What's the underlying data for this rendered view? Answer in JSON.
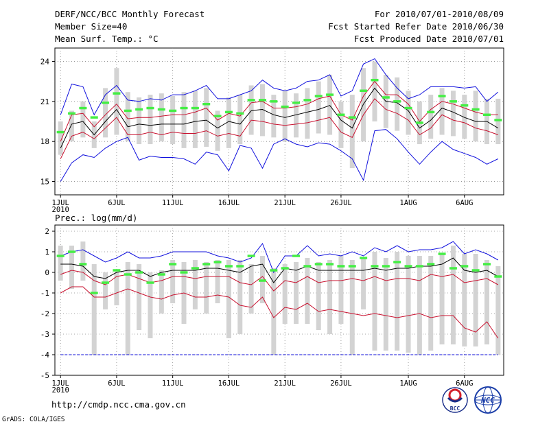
{
  "header": {
    "left": [
      "DERF/NCC/BCC Monthly Forecast",
      "Member Size=40",
      "Mean Surf. Temp.: °C"
    ],
    "right": [
      "For 2010/07/01-2010/08/09",
      "Fcst Started Refer Date 2010/06/30",
      "Fcst Produced Date 2010/07/01"
    ]
  },
  "footer": {
    "url": "http://cmdp.ncc.cma.gov.cn",
    "credit": "GrADS: COLA/IGES",
    "logo_bcc": "BCC",
    "logo_ncc": "NCC"
  },
  "colors": {
    "mean": "#000000",
    "bound": "#c8102e",
    "extreme": "#1010dd",
    "bar": "#d3d3d3",
    "obs": "#44ee44",
    "grid": "#888888"
  },
  "chart_data": [
    {
      "type": "line",
      "title": "Mean Surf. Temp.: °C",
      "xlabel": "",
      "ylabel": "",
      "x_tick_labels": [
        "1JUL",
        "6JUL",
        "11JUL",
        "16JUL",
        "21JUL",
        "26JUL",
        "1AUG",
        "6AUG"
      ],
      "x_tick_days": [
        1,
        6,
        11,
        16,
        21,
        26,
        32,
        37
      ],
      "x_sublabel": "2010",
      "x_range": [
        0.5,
        40.5
      ],
      "ylim": [
        14,
        25
      ],
      "y_ticks": [
        15,
        18,
        21,
        24
      ],
      "grid": true,
      "series": [
        {
          "name": "max",
          "color": "blue",
          "values": [
            15.0,
            16.4,
            17.0,
            16.8,
            17.5,
            18.0,
            18.3,
            16.6,
            16.9,
            16.8,
            16.8,
            16.7,
            16.3,
            17.2,
            17.0,
            15.8,
            17.7,
            17.5,
            16.0,
            17.8,
            18.2,
            17.8,
            17.6,
            17.9,
            17.8,
            17.3,
            16.7,
            15.1,
            18.8,
            18.9,
            18.2,
            17.2,
            16.3,
            17.2,
            18.0,
            17.4,
            17.1,
            16.8,
            16.3,
            16.7
          ]
        },
        {
          "name": "p25",
          "color": "red",
          "values": [
            16.7,
            18.4,
            18.7,
            18.2,
            19.0,
            19.8,
            18.5,
            18.5,
            18.7,
            18.5,
            18.7,
            18.6,
            18.6,
            18.8,
            18.4,
            18.6,
            18.4,
            19.6,
            19.5,
            19.3,
            19.2,
            19.3,
            19.4,
            19.6,
            19.8,
            18.7,
            18.3,
            20.0,
            21.2,
            20.4,
            20.1,
            19.6,
            18.5,
            19.0,
            20.0,
            19.6,
            19.4,
            19.0,
            18.8,
            18.5
          ]
        },
        {
          "name": "mean",
          "color": "black",
          "values": [
            17.5,
            19.3,
            19.5,
            18.5,
            19.5,
            20.4,
            19.1,
            19.3,
            19.2,
            19.3,
            19.3,
            19.3,
            19.5,
            19.6,
            19.0,
            19.5,
            19.3,
            20.3,
            20.4,
            20.0,
            19.8,
            20.0,
            20.2,
            20.4,
            20.7,
            19.6,
            19.0,
            20.8,
            22.0,
            21.0,
            20.9,
            20.3,
            19.0,
            19.6,
            20.5,
            20.2,
            19.8,
            19.5,
            19.5,
            19.0
          ]
        },
        {
          "name": "p75",
          "color": "red",
          "values": [
            18.0,
            20.0,
            20.1,
            19.1,
            20.0,
            20.8,
            19.7,
            19.8,
            19.8,
            19.9,
            20.0,
            20.0,
            20.2,
            20.5,
            19.6,
            20.1,
            19.9,
            20.9,
            21.0,
            20.5,
            20.5,
            20.6,
            20.8,
            21.2,
            21.4,
            20.0,
            19.6,
            21.4,
            22.5,
            21.5,
            21.5,
            20.8,
            19.5,
            20.4,
            21.0,
            20.8,
            20.5,
            20.2,
            20.0,
            20.0
          ]
        },
        {
          "name": "min",
          "color": "blue",
          "values": [
            20.0,
            22.3,
            22.1,
            20.0,
            21.5,
            22.2,
            21.1,
            21.0,
            21.2,
            21.1,
            21.5,
            21.5,
            21.8,
            22.2,
            21.2,
            21.2,
            21.5,
            21.8,
            22.6,
            22.0,
            21.8,
            22.0,
            22.5,
            22.6,
            23.0,
            21.4,
            21.8,
            23.8,
            24.2,
            23.0,
            22.0,
            21.2,
            21.5,
            22.1,
            22.1,
            22.1,
            22.0,
            22.1,
            21.0,
            21.7
          ]
        }
      ],
      "ensemble_ranges": [
        [
          17.0,
          19.5
        ],
        [
          18.0,
          20.3
        ],
        [
          18.3,
          21.0
        ],
        [
          17.5,
          19.5
        ],
        [
          18.3,
          22.0
        ],
        [
          18.5,
          23.5
        ],
        [
          18.0,
          21.7
        ],
        [
          17.8,
          21.3
        ],
        [
          17.8,
          21.5
        ],
        [
          18.0,
          21.6
        ],
        [
          17.8,
          21.4
        ],
        [
          17.5,
          21.7
        ],
        [
          17.5,
          21.8
        ],
        [
          17.6,
          22.0
        ],
        [
          17.3,
          20.3
        ],
        [
          17.5,
          21.3
        ],
        [
          17.8,
          21.5
        ],
        [
          18.5,
          22.2
        ],
        [
          18.4,
          22.3
        ],
        [
          18.3,
          21.5
        ],
        [
          18.0,
          21.8
        ],
        [
          18.3,
          21.6
        ],
        [
          18.2,
          22.0
        ],
        [
          18.6,
          22.5
        ],
        [
          18.5,
          23.0
        ],
        [
          17.5,
          21.0
        ],
        [
          16.0,
          21.5
        ],
        [
          18.0,
          23.5
        ],
        [
          19.5,
          24.0
        ],
        [
          19.0,
          23.0
        ],
        [
          18.8,
          22.8
        ],
        [
          18.5,
          21.8
        ],
        [
          17.8,
          21.0
        ],
        [
          18.2,
          21.5
        ],
        [
          18.5,
          22.0
        ],
        [
          18.4,
          21.8
        ],
        [
          18.2,
          21.5
        ],
        [
          18.0,
          21.8
        ],
        [
          17.8,
          21.2
        ],
        [
          17.8,
          21.2
        ]
      ],
      "observed": [
        18.7,
        20.1,
        20.5,
        19.8,
        20.9,
        21.6,
        20.3,
        20.4,
        20.5,
        20.4,
        20.3,
        20.5,
        20.5,
        20.8,
        19.9,
        20.2,
        20.1,
        21.1,
        21.1,
        21.0,
        20.6,
        20.9,
        21.1,
        21.4,
        21.5,
        20.0,
        19.8,
        21.8,
        22.6,
        21.3,
        21.0,
        20.5,
        19.4,
        20.2,
        21.4,
        21.0,
        20.7,
        20.4,
        20.0,
        19.6
      ]
    },
    {
      "type": "line",
      "title": "Prec.: log(mm/d)",
      "xlabel": "",
      "ylabel": "",
      "x_tick_labels": [
        "1JUL",
        "6JUL",
        "11JUL",
        "16JUL",
        "21JUL",
        "26JUL",
        "1AUG",
        "6AUG"
      ],
      "x_tick_days": [
        1,
        6,
        11,
        16,
        21,
        26,
        32,
        37
      ],
      "x_sublabel": "2010",
      "x_range": [
        0.5,
        40.5
      ],
      "ylim": [
        -5,
        2.3
      ],
      "y_ticks": [
        -5,
        -4,
        -3,
        -2,
        -1,
        0,
        1,
        2
      ],
      "grid": true,
      "series": [
        {
          "name": "floor",
          "color": "blue",
          "values": [
            -4,
            -4,
            -4,
            -4,
            -4,
            -4,
            -4,
            -4,
            -4,
            -4,
            -4,
            -4,
            -4,
            -4,
            -4,
            -4,
            -4,
            -4,
            -4,
            -4,
            -4,
            -4,
            -4,
            -4,
            -4,
            -4,
            -4,
            -4,
            -4,
            -4,
            -4,
            -4,
            -4,
            -4,
            -4,
            -4,
            -4,
            -4,
            -4,
            -4
          ]
        },
        {
          "name": "p10",
          "color": "red",
          "values": [
            -1.0,
            -0.7,
            -0.7,
            -1.2,
            -1.2,
            -1.0,
            -0.8,
            -1.0,
            -1.2,
            -1.3,
            -1.1,
            -1.0,
            -1.2,
            -1.2,
            -1.1,
            -1.2,
            -1.6,
            -1.7,
            -1.2,
            -2.2,
            -1.7,
            -1.8,
            -1.5,
            -1.9,
            -1.8,
            -1.9,
            -2.0,
            -2.1,
            -2.0,
            -2.1,
            -2.2,
            -2.1,
            -2.0,
            -2.2,
            -2.1,
            -2.1,
            -2.7,
            -2.9,
            -2.4,
            -3.2
          ]
        },
        {
          "name": "p25",
          "color": "red",
          "values": [
            -0.1,
            0.1,
            0.0,
            -0.4,
            -0.6,
            -0.2,
            -0.1,
            -0.3,
            -0.5,
            -0.4,
            -0.2,
            -0.2,
            -0.3,
            -0.2,
            -0.2,
            -0.2,
            -0.5,
            -0.6,
            -0.2,
            -0.9,
            -0.4,
            -0.5,
            -0.2,
            -0.5,
            -0.4,
            -0.4,
            -0.3,
            -0.4,
            -0.2,
            -0.4,
            -0.3,
            -0.3,
            -0.4,
            -0.1,
            -0.2,
            -0.1,
            -0.5,
            -0.4,
            -0.3,
            -0.6
          ]
        },
        {
          "name": "mean",
          "color": "black",
          "values": [
            0.4,
            0.4,
            0.3,
            -0.2,
            -0.3,
            0.0,
            0.1,
            0.1,
            -0.2,
            0.0,
            0.1,
            0.1,
            0.1,
            0.2,
            0.2,
            0.1,
            0.0,
            0.3,
            0.4,
            -0.5,
            0.2,
            0.1,
            0.3,
            0.1,
            0.1,
            0.1,
            0.1,
            0.1,
            0.2,
            0.1,
            0.2,
            0.2,
            0.3,
            0.3,
            0.4,
            0.7,
            0.1,
            0.0,
            0.1,
            -0.2
          ]
        },
        {
          "name": "max",
          "color": "blue",
          "values": [
            0.8,
            1.0,
            1.1,
            0.8,
            0.5,
            0.7,
            1.0,
            0.7,
            0.7,
            0.8,
            1.0,
            1.0,
            1.0,
            1.0,
            0.8,
            0.7,
            0.5,
            0.7,
            1.4,
            0.0,
            0.8,
            0.8,
            1.3,
            0.8,
            0.9,
            0.8,
            1.0,
            0.8,
            1.2,
            1.0,
            1.3,
            1.0,
            1.1,
            1.1,
            1.2,
            1.5,
            0.9,
            1.1,
            0.9,
            0.6
          ]
        }
      ],
      "ensemble_ranges": [
        [
          -0.4,
          1.3
        ],
        [
          -0.8,
          1.3
        ],
        [
          -0.4,
          1.5
        ],
        [
          -4.0,
          0.4
        ],
        [
          -1.8,
          0.0
        ],
        [
          -1.6,
          0.0
        ],
        [
          -4.0,
          0.5
        ],
        [
          -2.8,
          0.4
        ],
        [
          -3.2,
          0.0
        ],
        [
          -2.0,
          0.1
        ],
        [
          -1.5,
          0.6
        ],
        [
          -2.5,
          0.5
        ],
        [
          -1.8,
          0.6
        ],
        [
          -2.0,
          0.5
        ],
        [
          -1.5,
          0.6
        ],
        [
          -3.2,
          0.6
        ],
        [
          -3.0,
          0.6
        ],
        [
          -2.0,
          0.4
        ],
        [
          -1.5,
          0.8
        ],
        [
          -4.0,
          0.2
        ],
        [
          -2.5,
          0.4
        ],
        [
          -2.5,
          0.5
        ],
        [
          -2.5,
          0.7
        ],
        [
          -2.8,
          0.5
        ],
        [
          -3.0,
          0.6
        ],
        [
          -2.5,
          0.8
        ],
        [
          -4.0,
          0.6
        ],
        [
          -1.8,
          0.7
        ],
        [
          -3.8,
          1.0
        ],
        [
          -3.8,
          0.7
        ],
        [
          -3.8,
          1.0
        ],
        [
          -3.9,
          0.8
        ],
        [
          -4.0,
          0.8
        ],
        [
          -3.8,
          0.8
        ],
        [
          -3.5,
          0.9
        ],
        [
          -3.5,
          1.3
        ],
        [
          -3.6,
          0.9
        ],
        [
          -3.6,
          0.9
        ],
        [
          -3.5,
          0.6
        ],
        [
          -4.0,
          0.3
        ]
      ],
      "observed": [
        0.8,
        1.0,
        0.4,
        -1.0,
        -0.5,
        0.1,
        -0.1,
        0.0,
        -0.5,
        -0.1,
        0.4,
        0.0,
        0.2,
        0.4,
        0.5,
        0.3,
        0.3,
        0.8,
        -0.4,
        0.1,
        0.2,
        0.8,
        0.3,
        0.4,
        0.4,
        0.3,
        0.3,
        0.7,
        0.3,
        0.3,
        0.5,
        0.3,
        0.3,
        0.4,
        0.9,
        0.2,
        0.3,
        0.1,
        0.4,
        -0.2
      ]
    }
  ]
}
